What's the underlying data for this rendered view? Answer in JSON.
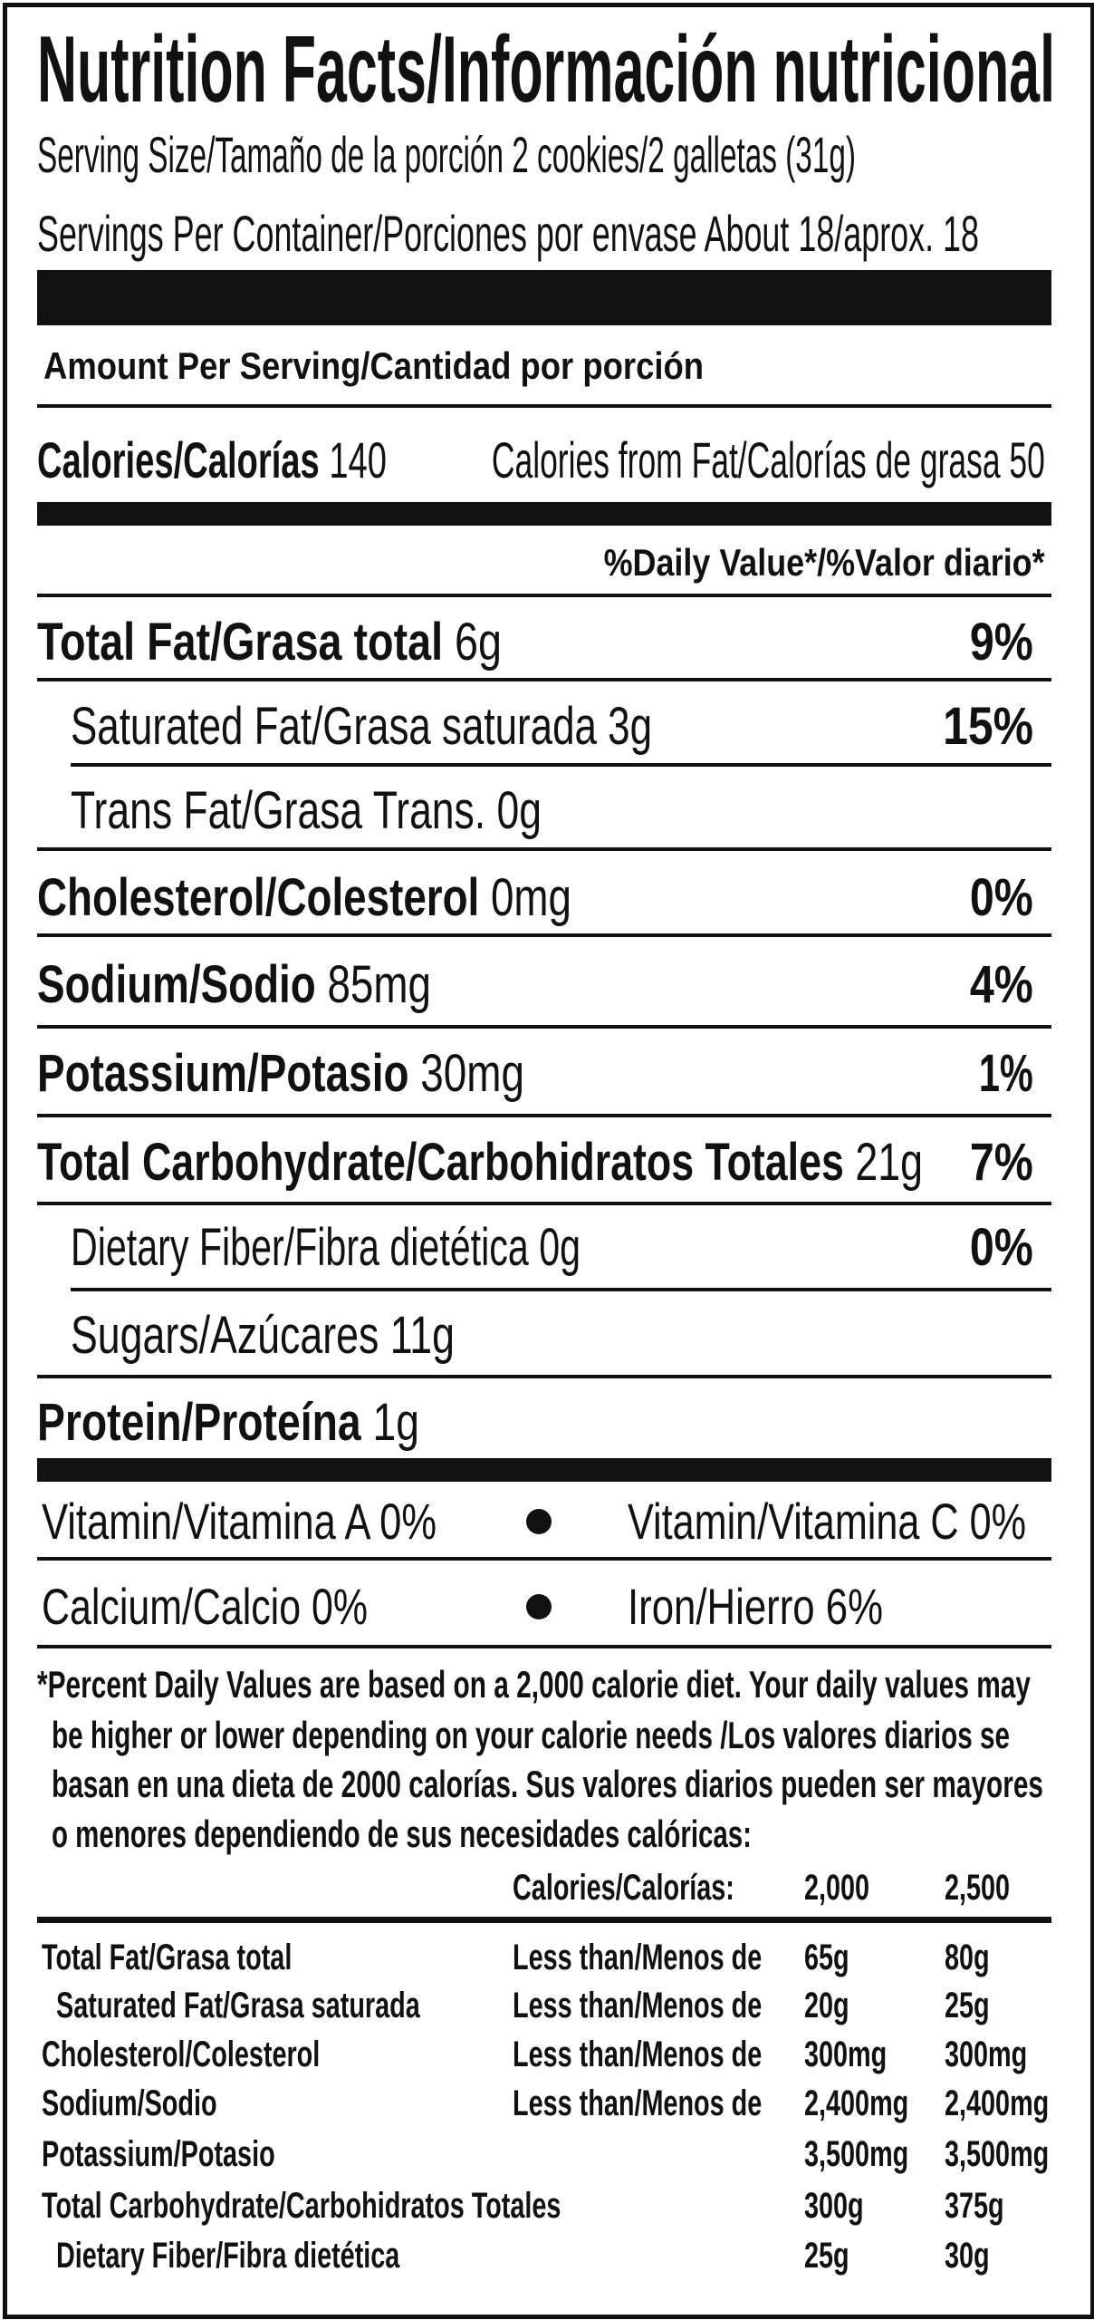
{
  "title": "Nutrition Facts/Información nutricional",
  "serving_size": "Serving Size/Tamaño de la porción 2 cookies/2 galletas (31g)",
  "servings_per_container": "Servings Per Container/Porciones por envase About 18/aprox. 18",
  "amount_per_serving": "Amount Per Serving/Cantidad por porción",
  "calories": {
    "label": "Calories/Calorías",
    "value": "140",
    "from_fat": "Calories from Fat/Calorías de grasa 50"
  },
  "dv_header": "%Daily Value*/%Valor diario*",
  "nutrients": [
    {
      "label": "Total Fat/Grasa total",
      "amount": "6g",
      "dv": "9%"
    },
    {
      "label": "Saturated Fat/Grasa saturada",
      "amount": "3g",
      "dv": "15%"
    },
    {
      "label": "Trans Fat/Grasa Trans.",
      "amount": "0g"
    },
    {
      "label": "Cholesterol/Colesterol",
      "amount": "0mg",
      "dv": "0%"
    },
    {
      "label": "Sodium/Sodio",
      "amount": "85mg",
      "dv": "4%"
    },
    {
      "label": "Potassium/Potasio",
      "amount": "30mg",
      "dv": "1%"
    },
    {
      "label": "Total Carbohydrate/Carbohidratos Totales",
      "amount": "21g",
      "dv": "7%"
    },
    {
      "label": "Dietary Fiber/Fibra dietética",
      "amount": "0g",
      "dv": "0%"
    },
    {
      "label": "Sugars/Azúcares",
      "amount": "11g"
    },
    {
      "label": "Protein/Proteína",
      "amount": "1g"
    }
  ],
  "vitamins": [
    "Vitamin/Vitamina A 0%",
    "Vitamin/Vitamina C 0%",
    "Calcium/Calcio 0%",
    "Iron/Hierro 6%"
  ],
  "footnote": [
    "*Percent Daily Values are based on a 2,000 calorie diet. Your daily values may",
    "be higher or lower depending on your calorie needs /Los valores diarios se",
    "basan en una dieta de 2000 calorías. Sus valores diarios pueden ser mayores",
    "o menores dependiendo de sus necesidades calóricas:"
  ],
  "reference_table": {
    "header": [
      "Calories/Calorías:",
      "2,000",
      "2,500"
    ],
    "rows": [
      [
        "Total Fat/Grasa total",
        "Less than/Menos de",
        "65g",
        "80g"
      ],
      [
        "Saturated Fat/Grasa saturada",
        "Less than/Menos de",
        "20g",
        "25g"
      ],
      [
        "Cholesterol/Colesterol",
        "Less than/Menos de",
        "300mg",
        "300mg"
      ],
      [
        "Sodium/Sodio",
        "Less than/Menos de",
        "2,400mg",
        "2,400mg"
      ],
      [
        "Potassium/Potasio",
        "",
        "3,500mg",
        "3,500mg"
      ],
      [
        "Total Carbohydrate/Carbohidratos Totales",
        "",
        "300g",
        "375g"
      ],
      [
        "Dietary Fiber/Fibra dietética",
        "",
        "25g",
        "30g"
      ]
    ]
  }
}
